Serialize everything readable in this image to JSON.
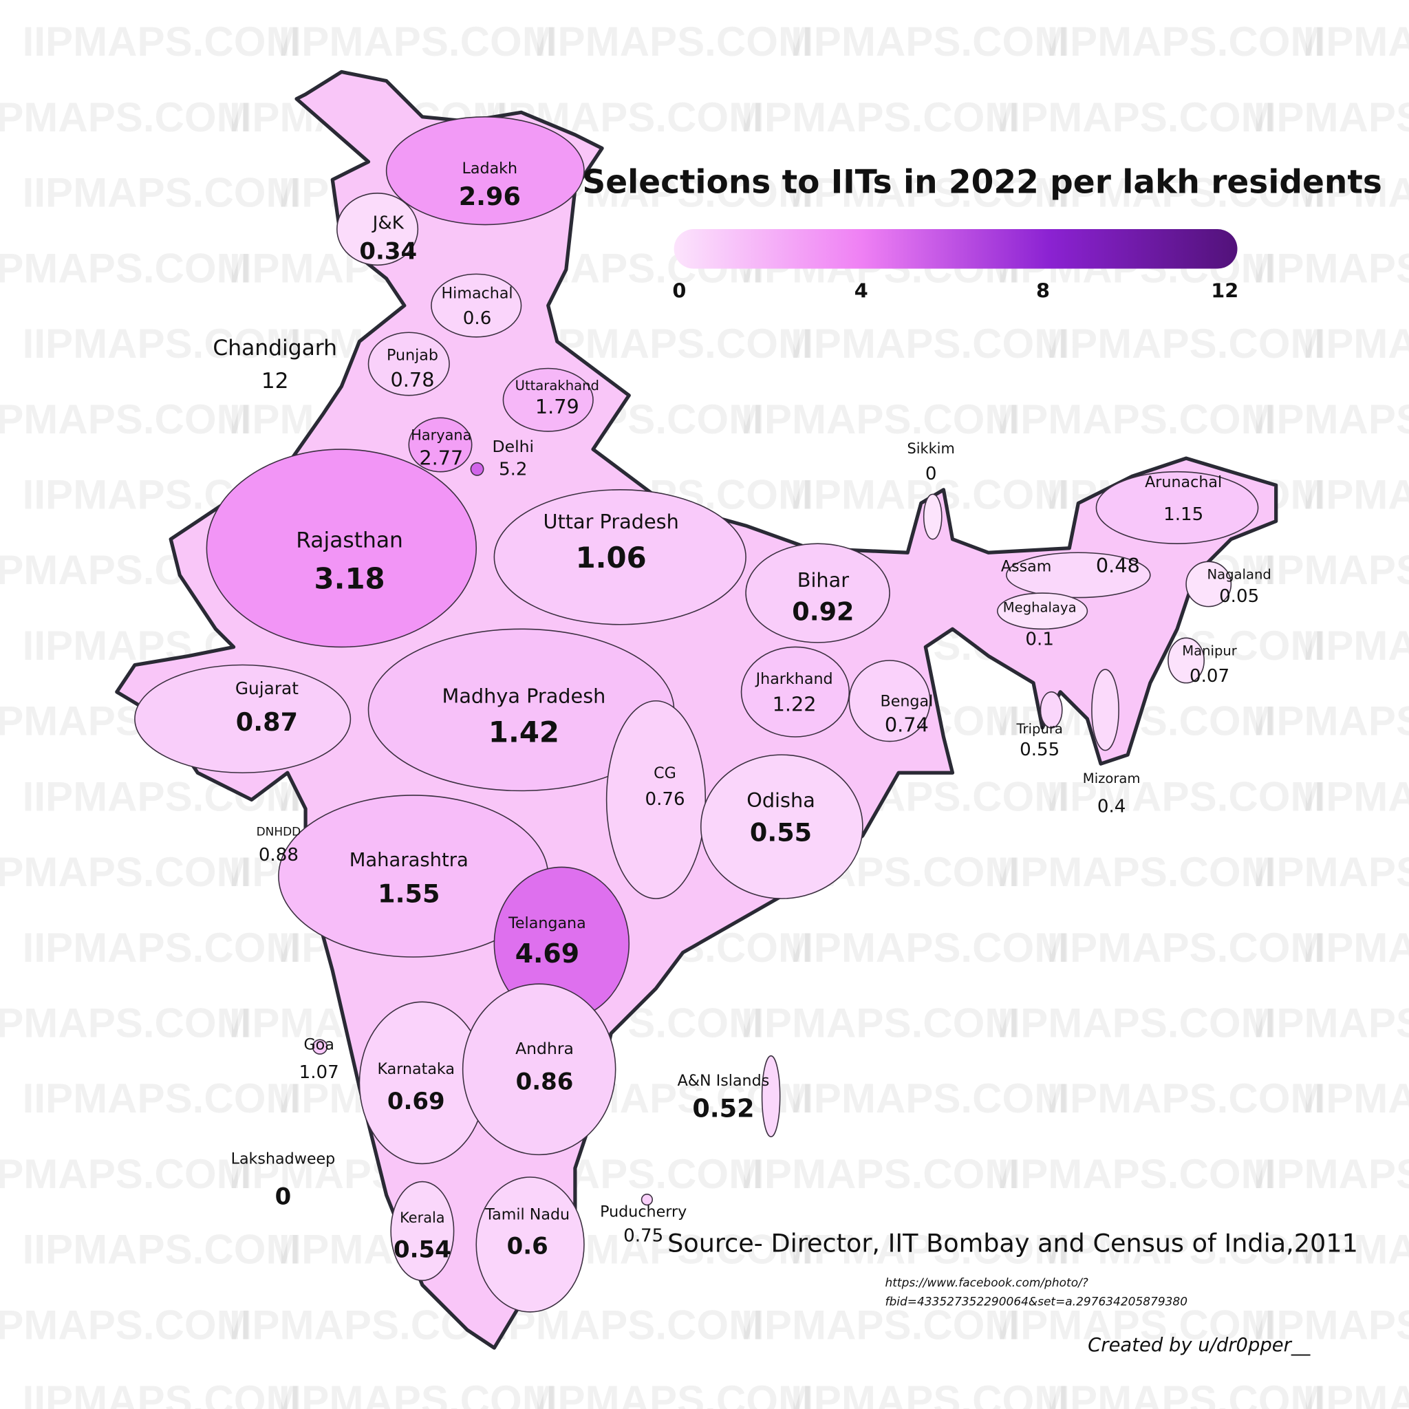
{
  "watermark": "IIPMAPS.COM",
  "title": "Selections to IITs in 2022 per lakh residents",
  "colorbar": {
    "ticks": [
      0,
      4,
      8,
      12
    ],
    "colors": [
      "#fce4fc",
      "#ef80f4",
      "#8b22d2",
      "#52127a"
    ]
  },
  "regions": [
    {
      "name": "Ladakh",
      "value": 2.96
    },
    {
      "name": "J&K",
      "value": 0.34
    },
    {
      "name": "Himachal",
      "value": 0.6
    },
    {
      "name": "Chandigarh",
      "value": 12
    },
    {
      "name": "Punjab",
      "value": 0.78
    },
    {
      "name": "Uttarakhand",
      "value": 1.79
    },
    {
      "name": "Haryana",
      "value": 2.77
    },
    {
      "name": "Delhi",
      "value": 5.2
    },
    {
      "name": "Rajasthan",
      "value": 3.18
    },
    {
      "name": "Uttar Pradesh",
      "value": 1.06
    },
    {
      "name": "Bihar",
      "value": 0.92
    },
    {
      "name": "Sikkim",
      "value": 0
    },
    {
      "name": "Arunachal",
      "value": 1.15
    },
    {
      "name": "Assam",
      "value": 0.48
    },
    {
      "name": "Nagaland",
      "value": 0.05
    },
    {
      "name": "Meghalaya",
      "value": 0.1
    },
    {
      "name": "Manipur",
      "value": 0.07
    },
    {
      "name": "Tripura",
      "value": 0.55
    },
    {
      "name": "Mizoram",
      "value": 0.4
    },
    {
      "name": "Jharkhand",
      "value": 1.22
    },
    {
      "name": "Bengal",
      "value": 0.74
    },
    {
      "name": "Gujarat",
      "value": 0.87
    },
    {
      "name": "Madhya Pradesh",
      "value": 1.42
    },
    {
      "name": "CG",
      "value": 0.76
    },
    {
      "name": "Odisha",
      "value": 0.55
    },
    {
      "name": "DNHDD",
      "value": 0.88
    },
    {
      "name": "Maharashtra",
      "value": 1.55
    },
    {
      "name": "Telangana",
      "value": 4.69
    },
    {
      "name": "Goa",
      "value": 1.07
    },
    {
      "name": "Karnataka",
      "value": 0.69
    },
    {
      "name": "Andhra",
      "value": 0.86
    },
    {
      "name": "A&N Islands",
      "value": 0.52
    },
    {
      "name": "Lakshadweep",
      "value": 0
    },
    {
      "name": "Kerala",
      "value": 0.54
    },
    {
      "name": "Tamil Nadu",
      "value": 0.6
    },
    {
      "name": "Puducherry",
      "value": 0.75
    }
  ],
  "source": "Source- Director, IIT Bombay and Census of India,2011",
  "url": [
    "https://www.facebook.com/photo/?",
    "fbid=433527352290064&set=a.297634205879380"
  ],
  "credit": "Created by u/dr0pper__"
}
